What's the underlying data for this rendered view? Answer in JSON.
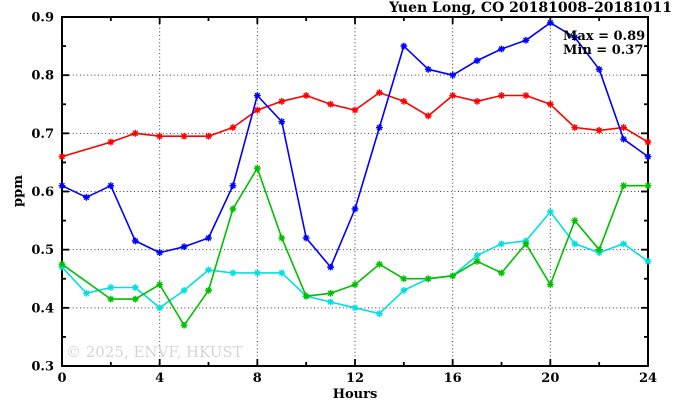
{
  "chart_data": {
    "type": "line",
    "title": "Yuen Long, CO 20181008–20181011",
    "xlabel": "Hours",
    "ylabel": "ppm",
    "xlim": [
      0,
      24
    ],
    "ylim": [
      0.3,
      0.9
    ],
    "x_major_ticks": [
      0,
      4,
      8,
      12,
      16,
      20,
      24
    ],
    "x_tick_labels": [
      "0",
      "4",
      "8",
      "12",
      "16",
      "20",
      "24"
    ],
    "x_minor_ticks": [
      2,
      6,
      10,
      14,
      18,
      22
    ],
    "y_major_ticks": [
      0.3,
      0.4,
      0.5,
      0.6,
      0.7,
      0.8,
      0.9
    ],
    "y_tick_labels": [
      "0.3",
      "0.4",
      "0.5",
      "0.6",
      "0.7",
      "0.8",
      "0.9"
    ],
    "y_minor_ticks": [
      0.35,
      0.45,
      0.55,
      0.65,
      0.75,
      0.85
    ],
    "grid": "dotted at major ticks",
    "legend_position": "none",
    "annotation": {
      "max_label": "Max = 0.89",
      "min_label": "Min = 0.37"
    },
    "watermark": "© 2025, ENVF, HKUST",
    "x": [
      0,
      1,
      2,
      3,
      4,
      5,
      6,
      7,
      8,
      9,
      10,
      11,
      12,
      13,
      14,
      15,
      16,
      17,
      18,
      19,
      20,
      21,
      22,
      23,
      24
    ],
    "series": [
      {
        "name": "series-cyan",
        "color": "#00e0e0",
        "values": [
          0.47,
          0.425,
          0.435,
          0.435,
          0.4,
          0.43,
          0.465,
          0.46,
          0.46,
          0.46,
          0.42,
          0.41,
          0.4,
          0.39,
          0.43,
          0.45,
          0.455,
          0.49,
          0.51,
          0.515,
          0.565,
          0.51,
          0.495,
          0.51,
          0.48
        ]
      },
      {
        "name": "series-green",
        "color": "#00c000",
        "values": [
          0.475,
          null,
          0.415,
          0.415,
          0.44,
          0.37,
          0.43,
          0.57,
          0.64,
          0.52,
          0.42,
          0.425,
          0.44,
          0.475,
          0.45,
          0.45,
          0.455,
          0.48,
          0.46,
          0.51,
          0.44,
          0.55,
          0.5,
          0.61,
          0.61
        ]
      },
      {
        "name": "series-red",
        "color": "#ff0000",
        "values": [
          0.66,
          null,
          0.685,
          0.7,
          0.695,
          0.695,
          0.695,
          0.71,
          0.74,
          0.755,
          0.765,
          0.75,
          0.74,
          0.77,
          0.755,
          0.73,
          0.765,
          0.755,
          0.765,
          0.765,
          0.75,
          0.71,
          0.705,
          0.71,
          0.685
        ]
      },
      {
        "name": "series-blue",
        "color": "#0000ff",
        "values": [
          0.61,
          0.59,
          0.61,
          0.515,
          0.495,
          0.505,
          0.52,
          0.61,
          0.765,
          0.72,
          0.52,
          0.47,
          0.57,
          0.71,
          0.85,
          0.81,
          0.8,
          0.825,
          0.845,
          0.86,
          0.89,
          0.865,
          0.81,
          0.69,
          0.66
        ]
      }
    ]
  }
}
